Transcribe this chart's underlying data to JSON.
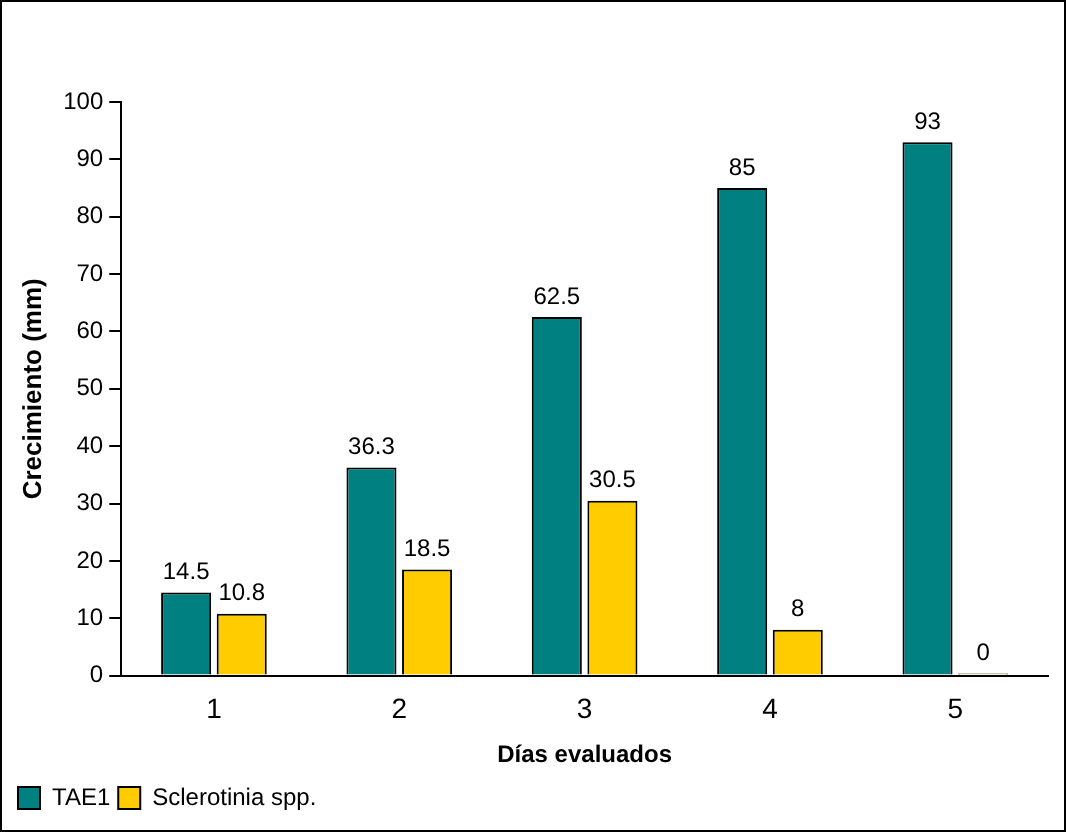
{
  "chart_data": {
    "type": "bar",
    "xlabel": "Días evaluados",
    "ylabel": "Crecimiento (mm)",
    "categories": [
      "1",
      "2",
      "3",
      "4",
      "5"
    ],
    "series": [
      {
        "name": "TAE1",
        "color": "#008080",
        "values": [
          14.5,
          36.3,
          62.5,
          85,
          93
        ]
      },
      {
        "name": "Sclerotinia spp.",
        "color": "#ffcc00",
        "values": [
          10.8,
          18.5,
          30.5,
          8,
          0
        ]
      }
    ],
    "ylim": [
      0,
      100
    ],
    "yticks": [
      0,
      10,
      20,
      30,
      40,
      50,
      60,
      70,
      80,
      90,
      100
    ],
    "grid": false,
    "legend": "bottom left",
    "data_labels": true
  }
}
